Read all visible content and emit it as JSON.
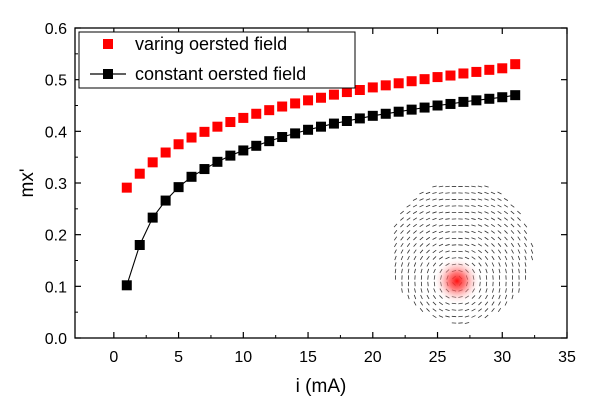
{
  "chart_data": {
    "type": "line",
    "title": "",
    "xlabel": "i (mA)",
    "ylabel": "mx'",
    "xlim": [
      -3,
      35
    ],
    "ylim": [
      0.0,
      0.6
    ],
    "xticks": [
      "0",
      "5",
      "10",
      "15",
      "20",
      "25",
      "30",
      "35"
    ],
    "yticks": [
      "0.0",
      "0.1",
      "0.2",
      "0.3",
      "0.4",
      "0.5",
      "0.6"
    ],
    "grid": false,
    "legend_position": "top-left",
    "x": [
      1,
      2,
      3,
      4,
      5,
      6,
      7,
      8,
      9,
      10,
      11,
      12,
      13,
      14,
      15,
      16,
      17,
      18,
      19,
      20,
      21,
      22,
      23,
      24,
      25,
      26,
      27,
      28,
      29,
      30,
      31
    ],
    "series": [
      {
        "name": "varing oersted field",
        "color": "#ff0000",
        "marker": "square",
        "line": false,
        "values": [
          0.291,
          0.318,
          0.34,
          0.359,
          0.375,
          0.388,
          0.399,
          0.409,
          0.418,
          0.426,
          0.434,
          0.441,
          0.448,
          0.454,
          0.46,
          0.465,
          0.471,
          0.476,
          0.48,
          0.485,
          0.489,
          0.493,
          0.497,
          0.501,
          0.505,
          0.508,
          0.512,
          0.515,
          0.519,
          0.522,
          0.53
        ]
      },
      {
        "name": "constant oersted field",
        "color": "#000000",
        "marker": "square",
        "line": true,
        "values": [
          0.102,
          0.18,
          0.233,
          0.266,
          0.292,
          0.312,
          0.327,
          0.341,
          0.353,
          0.363,
          0.372,
          0.381,
          0.389,
          0.396,
          0.403,
          0.409,
          0.415,
          0.42,
          0.425,
          0.43,
          0.434,
          0.438,
          0.442,
          0.446,
          0.45,
          0.453,
          0.457,
          0.46,
          0.463,
          0.466,
          0.47
        ]
      }
    ],
    "inset": {
      "type": "vector-field",
      "description_icon": "vortex-magnetization-inset",
      "core_color": "#ff2020"
    }
  }
}
